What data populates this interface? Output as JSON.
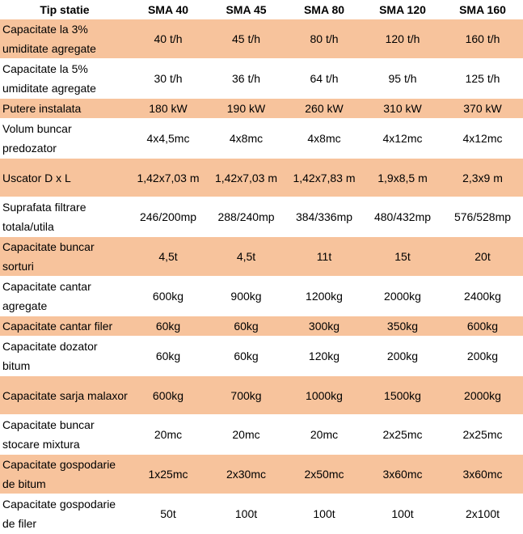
{
  "header": [
    "Tip statie",
    "SMA 40",
    "SMA 45",
    "SMA 80",
    "SMA 120",
    "SMA 160"
  ],
  "rows": [
    {
      "label": "Capacitate la 3% umiditate agregate",
      "values": [
        "40 t/h",
        "45 t/h",
        "80 t/h",
        "120 t/h",
        "160 t/h"
      ]
    },
    {
      "label": "Capacitate la 5% umiditate agregate",
      "values": [
        "30 t/h",
        "36 t/h",
        "64 t/h",
        "95 t/h",
        "125 t/h"
      ]
    },
    {
      "label": "Putere instalata",
      "values": [
        "180 kW",
        "190 kW",
        "260 kW",
        "310 kW",
        "370 kW"
      ]
    },
    {
      "label": "Volum buncar predozator",
      "values": [
        "4x4,5mc",
        "4x8mc",
        "4x8mc",
        "4x12mc",
        "4x12mc"
      ]
    },
    {
      "label": "Uscator D x L",
      "values": [
        "1,42x7,03 m",
        "1,42x7,03 m",
        "1,42x7,83 m",
        "1,9x8,5 m",
        "2,3x9 m"
      ]
    },
    {
      "label": "Suprafata filtrare totala/utila",
      "values": [
        "246/200mp",
        "288/240mp",
        "384/336mp",
        "480/432mp",
        "576/528mp"
      ]
    },
    {
      "label": "Capacitate buncar sorturi",
      "values": [
        "4,5t",
        "4,5t",
        "11t",
        "15t",
        "20t"
      ]
    },
    {
      "label": "Capacitate cantar agregate",
      "values": [
        "600kg",
        "900kg",
        "1200kg",
        "2000kg",
        "2400kg"
      ]
    },
    {
      "label": "Capacitate cantar filer",
      "values": [
        "60kg",
        "60kg",
        "300kg",
        "350kg",
        "600kg"
      ]
    },
    {
      "label": "Capacitate dozator bitum",
      "values": [
        "60kg",
        "60kg",
        "120kg",
        "200kg",
        "200kg"
      ]
    },
    {
      "label": "Capacitate sarja malaxor",
      "values": [
        "600kg",
        "700kg",
        "1000kg",
        "1500kg",
        "2000kg"
      ]
    },
    {
      "label": "Capacitate buncar stocare mixtura",
      "values": [
        "20mc",
        "20mc",
        "20mc",
        "2x25mc",
        "2x25mc"
      ]
    },
    {
      "label": "Capacitate gospodarie de bitum",
      "values": [
        "1x25mc",
        "2x30mc",
        "2x50mc",
        "3x60mc",
        "3x60mc"
      ]
    },
    {
      "label": "Capacitate gospodarie de filer",
      "values": [
        "50t",
        "100t",
        "100t",
        "100t",
        "2x100t"
      ]
    }
  ],
  "colors": {
    "shaded": "#f7c39c",
    "plain": "#ffffff"
  }
}
